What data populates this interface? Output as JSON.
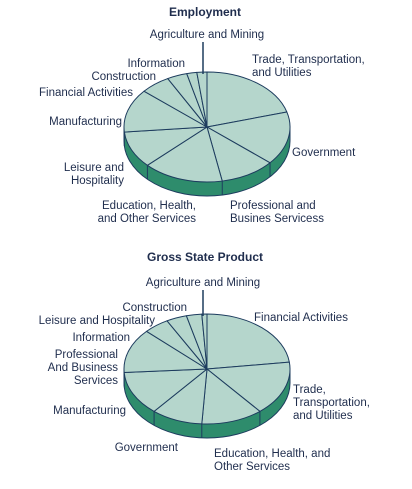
{
  "colors": {
    "top": "#b5d6cc",
    "side": "#2e8c6c",
    "stroke": "#1d3c5e",
    "text": "#1f2d4d"
  },
  "chart_data": [
    {
      "type": "pie",
      "title": "Employment",
      "slices": [
        {
          "label": "Trade, Transportation, and Utilities",
          "lines": [
            "Trade, Transportation,",
            "and Utilities"
          ],
          "value": 21
        },
        {
          "label": "Government",
          "lines": [
            "Government"
          ],
          "value": 16
        },
        {
          "label": "Professional and Busines Servicess",
          "lines": [
            "Professional and",
            "Busines Servicess"
          ],
          "value": 11
        },
        {
          "label": "Education, Health, and Other Services",
          "lines": [
            "Education, Health,",
            "and Other Services"
          ],
          "value": 16
        },
        {
          "label": "Leisure and Hospitality",
          "lines": [
            "Leisure and",
            "Hospitality"
          ],
          "value": 11
        },
        {
          "label": "Manufacturing",
          "lines": [
            "Manufacturing"
          ],
          "value": 13
        },
        {
          "label": "Financial Activities",
          "lines": [
            "Financial Activities"
          ],
          "value": 6
        },
        {
          "label": "Construction",
          "lines": [
            "Construction"
          ],
          "value": 4
        },
        {
          "label": "Information",
          "lines": [
            "Information"
          ],
          "value": 2
        },
        {
          "label": "Agriculture and Mining",
          "lines": [
            "Agriculture and Mining"
          ],
          "value": 2
        }
      ]
    },
    {
      "type": "pie",
      "title": "Gross State Product",
      "slices": [
        {
          "label": "Financial Activities",
          "lines": [
            "Financial Activities"
          ],
          "value": 23
        },
        {
          "label": "Trade, Transportation, and Utilities",
          "lines": [
            "Trade,",
            "Transportation,",
            "and Utilities"
          ],
          "value": 16
        },
        {
          "label": "Education, Health, and Other Services",
          "lines": [
            "Education, Health, and",
            "Other Services"
          ],
          "value": 12
        },
        {
          "label": "Government",
          "lines": [
            "Government"
          ],
          "value": 10
        },
        {
          "label": "Manufacturing",
          "lines": [
            "Manufacturing"
          ],
          "value": 13
        },
        {
          "label": "Professional And Business Services",
          "lines": [
            "Professional",
            "And Business",
            "Services"
          ],
          "value": 13
        },
        {
          "label": "Information",
          "lines": [
            "Information"
          ],
          "value": 5
        },
        {
          "label": "Leisure and Hospitality",
          "lines": [
            "Leisure and Hospitality"
          ],
          "value": 4
        },
        {
          "label": "Construction",
          "lines": [
            "Construction"
          ],
          "value": 3
        },
        {
          "label": "Agriculture and Mining",
          "lines": [
            "Agriculture and Mining"
          ],
          "value": 1
        }
      ]
    }
  ]
}
